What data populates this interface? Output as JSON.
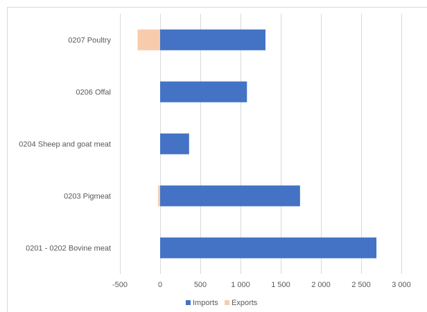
{
  "chart_data": {
    "type": "bar",
    "orientation": "horizontal",
    "stacked": true,
    "categories": [
      "0207 Poultry",
      "0206 Offal",
      "0204 Sheep and goat meat",
      "0203 Pigmeat",
      "0201 - 0202 Bovine meat"
    ],
    "series": [
      {
        "name": "Imports",
        "color": "#4472C4",
        "values": [
          1310,
          1080,
          360,
          1740,
          2690
        ]
      },
      {
        "name": "Exports",
        "color": "#F8CBAD",
        "values": [
          -280,
          0,
          0,
          -25,
          0
        ]
      }
    ],
    "x_ticks": [
      "-500",
      "0",
      "500",
      "1 000",
      "1 500",
      "2 000",
      "2 500",
      "3 000"
    ],
    "xlim": [
      -500,
      3000
    ],
    "grid": true,
    "legend_position": "bottom",
    "title": "",
    "xlabel": "",
    "ylabel": ""
  }
}
